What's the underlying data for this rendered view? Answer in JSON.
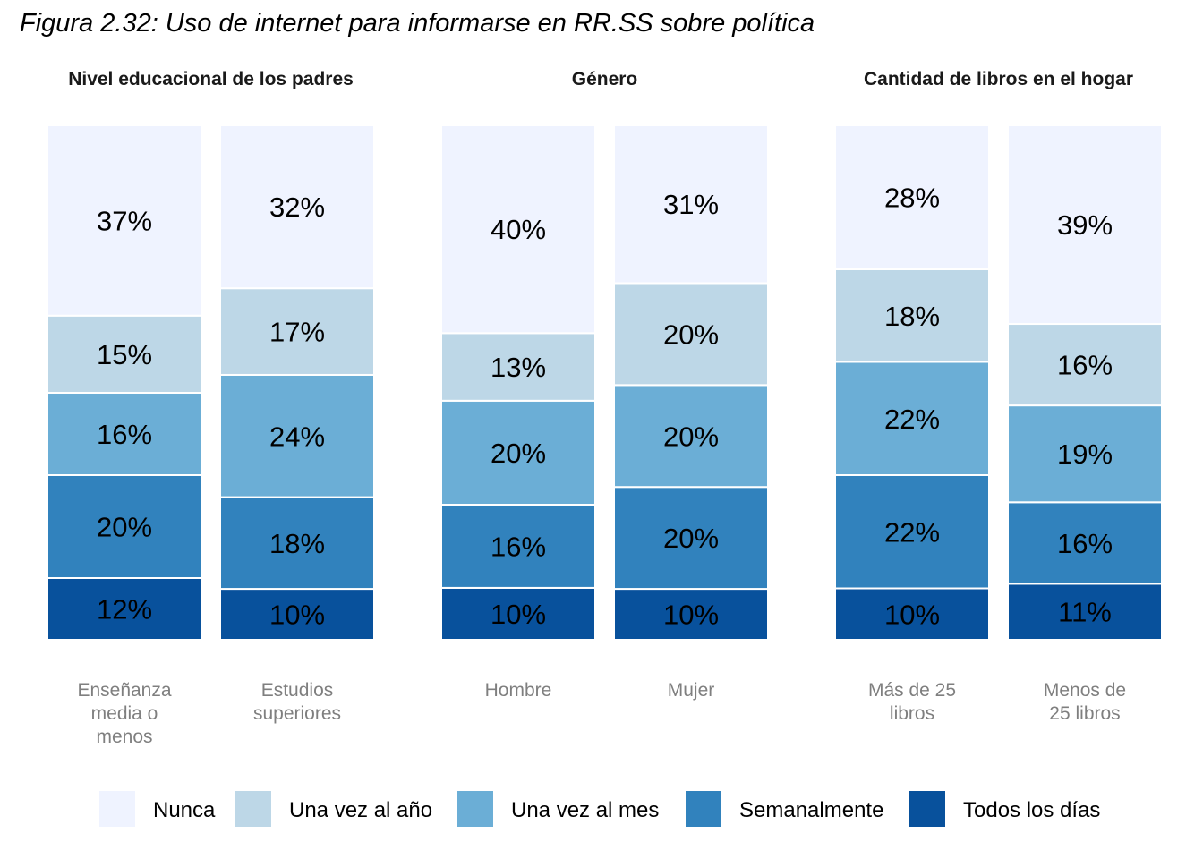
{
  "title": "Figura 2.32: Uso de internet para informarse en RR.SS sobre política",
  "legend": {
    "position": "bottom",
    "items": [
      {
        "name": "Nunca",
        "color": "#eff3ff"
      },
      {
        "name": "Una vez al año",
        "color": "#bdd7e7"
      },
      {
        "name": "Una vez al mes",
        "color": "#6baed6"
      },
      {
        "name": "Semanalmente",
        "color": "#3182bd"
      },
      {
        "name": "Todos los días",
        "color": "#08519c"
      }
    ]
  },
  "chart_data": {
    "type": "bar",
    "stacked": true,
    "percent": true,
    "ylim": [
      0,
      100
    ],
    "grid": false,
    "stack_order": [
      "Todos los días",
      "Semanalmente",
      "Una vez al mes",
      "Una vez al año",
      "Nunca"
    ],
    "panels": [
      {
        "title": "Nivel educacional de los padres",
        "categories": [
          {
            "label": [
              "Enseñanza",
              "media o",
              "menos"
            ],
            "values": {
              "Todos los días": 12,
              "Semanalmente": 20,
              "Una vez al mes": 16,
              "Una vez al año": 15,
              "Nunca": 37
            }
          },
          {
            "label": [
              "Estudios",
              "superiores"
            ],
            "values": {
              "Todos los días": 10,
              "Semanalmente": 18,
              "Una vez al mes": 24,
              "Una vez al año": 17,
              "Nunca": 32
            }
          }
        ]
      },
      {
        "title": "Género",
        "categories": [
          {
            "label": [
              "Hombre"
            ],
            "values": {
              "Todos los días": 10,
              "Semanalmente": 16,
              "Una vez al mes": 20,
              "Una vez al año": 13,
              "Nunca": 40
            }
          },
          {
            "label": [
              "Mujer"
            ],
            "values": {
              "Todos los días": 10,
              "Semanalmente": 20,
              "Una vez al mes": 20,
              "Una vez al año": 20,
              "Nunca": 31
            }
          }
        ]
      },
      {
        "title": "Cantidad de libros en el hogar",
        "categories": [
          {
            "label": [
              "Más de 25",
              "libros"
            ],
            "values": {
              "Todos los días": 10,
              "Semanalmente": 22,
              "Una vez al mes": 22,
              "Una vez al año": 18,
              "Nunca": 28
            }
          },
          {
            "label": [
              "Menos de",
              "25 libros"
            ],
            "values": {
              "Todos los días": 11,
              "Semanalmente": 16,
              "Una vez al mes": 19,
              "Una vez al año": 16,
              "Nunca": 39
            }
          }
        ]
      }
    ]
  }
}
